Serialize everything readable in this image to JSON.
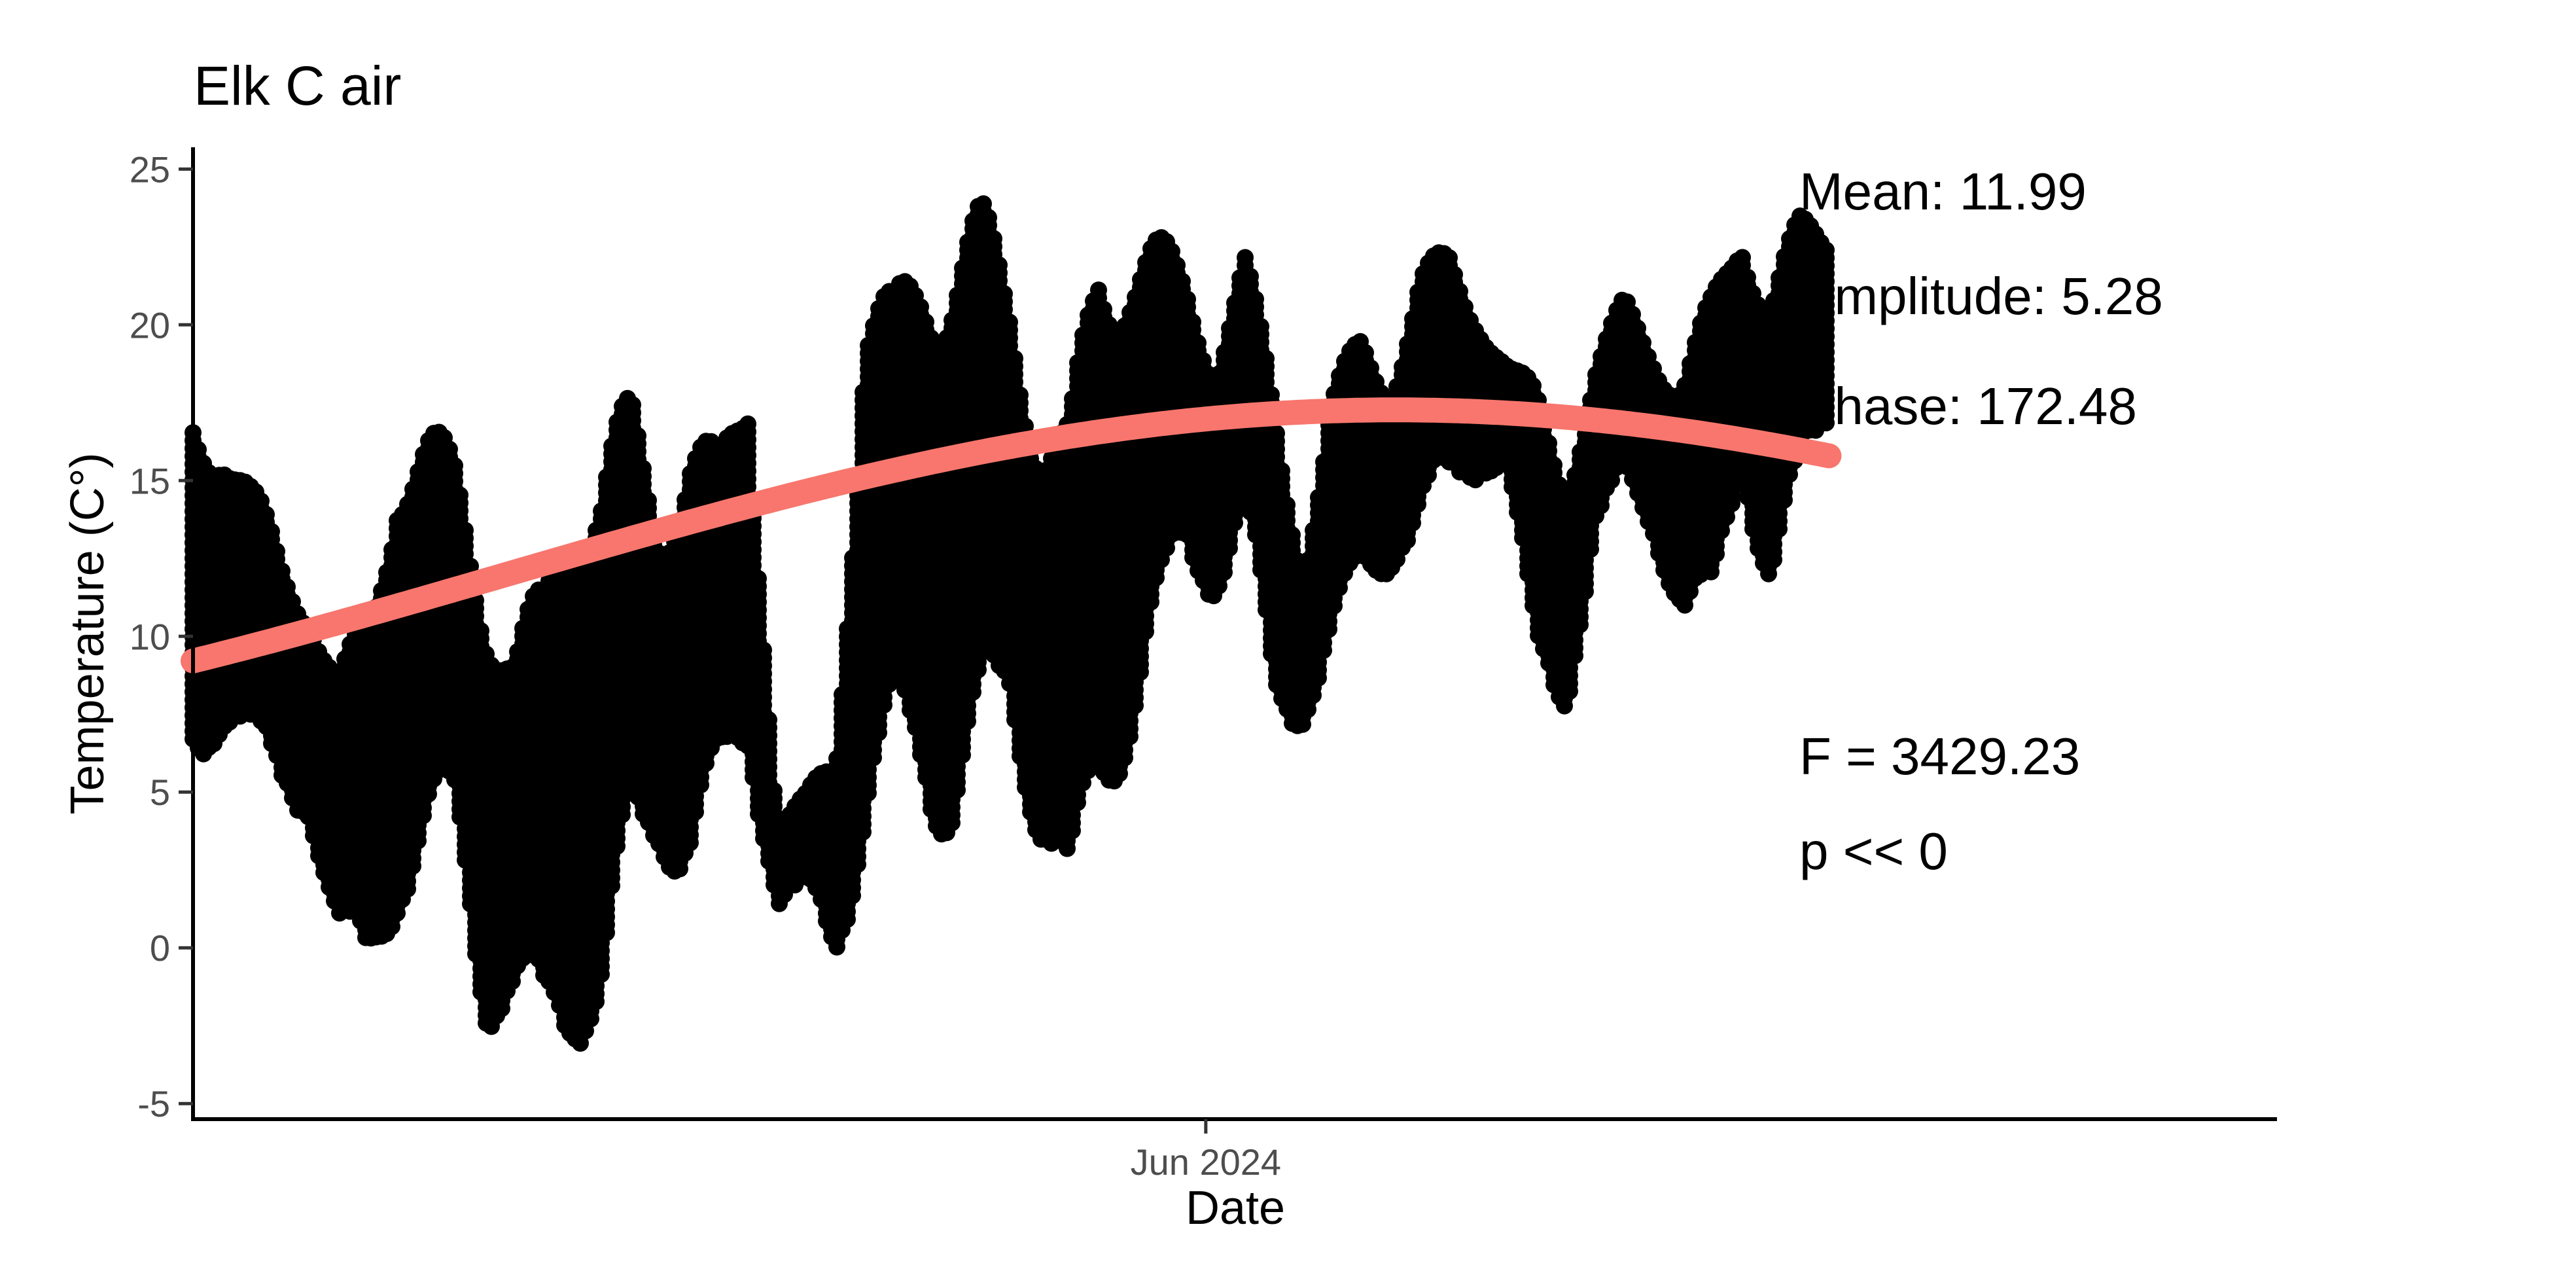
{
  "chart_data": {
    "type": "scatter",
    "title": "Elk C air",
    "xlabel": "Date",
    "ylabel": "Temperature (C°)",
    "x_range": [
      "2024-02-18",
      "2024-09-19"
    ],
    "ylim": [
      -5.5,
      25.7
    ],
    "y_ticks": [
      -5,
      0,
      5,
      10,
      15,
      20,
      25
    ],
    "x_ticks": [
      {
        "date": "2024-06-01",
        "label": "Jun 2024"
      }
    ],
    "grid": false,
    "legend": "none",
    "point_color": "#000000",
    "fit_color": "#F8766D",
    "observations": [
      {
        "date": "2024-02-18",
        "min": 5,
        "max": 18
      },
      {
        "date": "2024-02-21",
        "min": 7,
        "max": 17.5
      },
      {
        "date": "2024-02-24",
        "min": 5.5,
        "max": 15
      },
      {
        "date": "2024-02-27",
        "min": 4.5,
        "max": 13
      },
      {
        "date": "2024-03-01",
        "min": 4,
        "max": 12
      },
      {
        "date": "2024-03-04",
        "min": -1,
        "max": 9
      },
      {
        "date": "2024-03-07",
        "min": -2,
        "max": 11
      },
      {
        "date": "2024-03-10",
        "min": 1,
        "max": 17.5
      },
      {
        "date": "2024-03-13",
        "min": 2,
        "max": 17
      },
      {
        "date": "2024-03-16",
        "min": 3,
        "max": 16
      },
      {
        "date": "2024-03-19",
        "min": -2.5,
        "max": 13
      },
      {
        "date": "2024-03-22",
        "min": -3,
        "max": 10
      },
      {
        "date": "2024-03-25",
        "min": -4,
        "max": 12
      },
      {
        "date": "2024-03-28",
        "min": -3,
        "max": 17
      },
      {
        "date": "2024-03-31",
        "min": -3.5,
        "max": 16
      },
      {
        "date": "2024-04-03",
        "min": 2,
        "max": 18
      },
      {
        "date": "2024-04-06",
        "min": 3,
        "max": 15
      },
      {
        "date": "2024-04-09",
        "min": 1.5,
        "max": 17
      },
      {
        "date": "2024-04-12",
        "min": 4,
        "max": 16
      },
      {
        "date": "2024-04-15",
        "min": 6,
        "max": 19.5
      },
      {
        "date": "2024-04-18",
        "min": 1,
        "max": 4
      },
      {
        "date": "2024-04-21",
        "min": 1.5,
        "max": 5
      },
      {
        "date": "2024-04-24",
        "min": -0.5,
        "max": 7
      },
      {
        "date": "2024-04-27",
        "min": 3,
        "max": 22
      },
      {
        "date": "2024-04-30",
        "min": 5,
        "max": 21
      },
      {
        "date": "2024-05-03",
        "min": 4.5,
        "max": 23.5
      },
      {
        "date": "2024-05-06",
        "min": 3,
        "max": 24
      },
      {
        "date": "2024-05-09",
        "min": 5,
        "max": 24
      },
      {
        "date": "2024-05-12",
        "min": 7,
        "max": 22
      },
      {
        "date": "2024-05-15",
        "min": 3,
        "max": 18
      },
      {
        "date": "2024-05-18",
        "min": -0.8,
        "max": 17
      },
      {
        "date": "2024-05-21",
        "min": 4,
        "max": 23.5
      },
      {
        "date": "2024-05-24",
        "min": 6,
        "max": 24
      },
      {
        "date": "2024-05-27",
        "min": 9,
        "max": 23
      },
      {
        "date": "2024-05-30",
        "min": 12,
        "max": 22
      },
      {
        "date": "2024-06-02",
        "min": 11,
        "max": 20
      },
      {
        "date": "2024-06-05",
        "min": 13,
        "max": 22.5
      },
      {
        "date": "2024-06-08",
        "min": 7,
        "max": 18
      },
      {
        "date": "2024-06-11",
        "min": 7,
        "max": 13
      },
      {
        "date": "2024-06-14",
        "min": 9,
        "max": 18
      },
      {
        "date": "2024-06-17",
        "min": 11,
        "max": 20
      },
      {
        "date": "2024-06-20",
        "min": 12,
        "max": 19
      },
      {
        "date": "2024-06-23",
        "min": 13,
        "max": 22
      },
      {
        "date": "2024-06-26",
        "min": 14,
        "max": 22.5
      },
      {
        "date": "2024-06-29",
        "min": 15,
        "max": 21
      },
      {
        "date": "2024-07-02",
        "min": 15,
        "max": 19
      },
      {
        "date": "2024-07-05",
        "min": 8,
        "max": 18
      },
      {
        "date": "2024-07-08",
        "min": 7.5,
        "max": 16
      },
      {
        "date": "2024-07-11",
        "min": 13,
        "max": 19
      },
      {
        "date": "2024-07-14",
        "min": 14,
        "max": 21
      },
      {
        "date": "2024-07-17",
        "min": 13,
        "max": 20
      },
      {
        "date": "2024-07-20",
        "min": 10,
        "max": 19
      },
      {
        "date": "2024-07-23",
        "min": 9.5,
        "max": 21
      },
      {
        "date": "2024-07-26",
        "min": 15,
        "max": 24
      },
      {
        "date": "2024-07-29",
        "min": 11,
        "max": 22
      },
      {
        "date": "2024-08-01",
        "min": 14,
        "max": 23.5
      },
      {
        "date": "2024-08-04",
        "min": 16.5,
        "max": 23.5
      }
    ],
    "fit": {
      "mean": 11.99,
      "amplitude": 5.28,
      "phase": 172.48
    },
    "annotations": {
      "mean": "Mean: 11.99",
      "amplitude": "Amplitude: 5.28",
      "phase": "Phase: 172.48",
      "f_stat": "F =  3429.23",
      "p_value": "p <<  0"
    }
  }
}
